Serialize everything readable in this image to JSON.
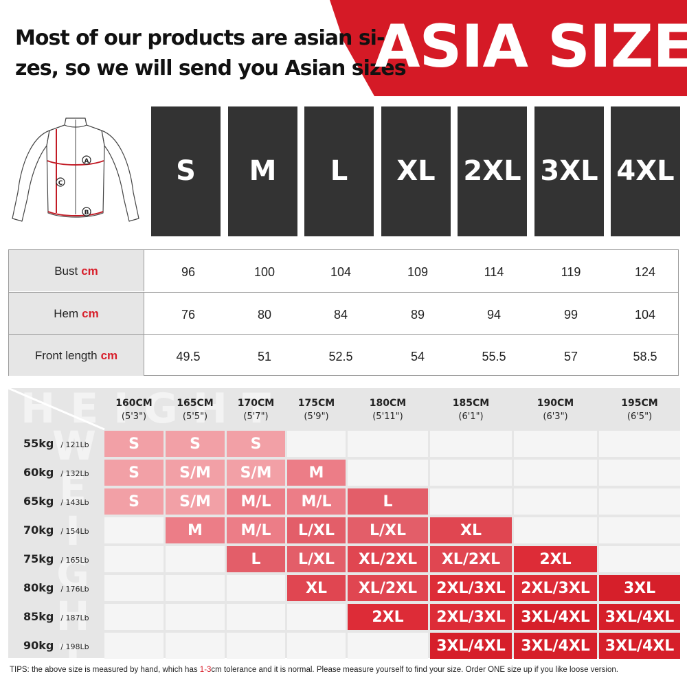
{
  "header": {
    "line1": "Most of our products are asian si-",
    "line2": "zes, so we will send you Asian sizes",
    "title": "ASIA SIZE"
  },
  "jacket": {
    "markers": [
      "A",
      "C",
      "B"
    ]
  },
  "sizes": [
    "S",
    "M",
    "L",
    "XL",
    "2XL",
    "3XL",
    "4XL"
  ],
  "measurements": {
    "unit": "cm",
    "rows": [
      {
        "label": "Bust",
        "values": [
          "96",
          "100",
          "104",
          "109",
          "114",
          "119",
          "124"
        ]
      },
      {
        "label": "Hem",
        "values": [
          "76",
          "80",
          "84",
          "89",
          "94",
          "99",
          "104"
        ]
      },
      {
        "label": "Front length",
        "values": [
          "49.5",
          "51",
          "52.5",
          "54",
          "55.5",
          "57",
          "58.5"
        ]
      }
    ]
  },
  "chart": {
    "watermark_height": "HEIGHT",
    "watermark_weight": "WEIGHT",
    "heights": [
      {
        "cm": "160CM",
        "ft": "(5'3\")"
      },
      {
        "cm": "165CM",
        "ft": "(5'5\")"
      },
      {
        "cm": "170CM",
        "ft": "(5'7\")"
      },
      {
        "cm": "175CM",
        "ft": "(5'9\")"
      },
      {
        "cm": "180CM",
        "ft": "(5'11\")"
      },
      {
        "cm": "185CM",
        "ft": "(6'1\")"
      },
      {
        "cm": "190CM",
        "ft": "(6'3\")"
      },
      {
        "cm": "195CM",
        "ft": "(6'5\")"
      }
    ],
    "weights": [
      {
        "kg": "55kg",
        "lb": "/ 121Lb"
      },
      {
        "kg": "60kg",
        "lb": "/ 132Lb"
      },
      {
        "kg": "65kg",
        "lb": "/ 143Lb"
      },
      {
        "kg": "70kg",
        "lb": "/ 154Lb"
      },
      {
        "kg": "75kg",
        "lb": "/ 165Lb"
      },
      {
        "kg": "80kg",
        "lb": "/ 176Lb"
      },
      {
        "kg": "85kg",
        "lb": "/ 187Lb"
      },
      {
        "kg": "90kg",
        "lb": "/ 198Lb"
      }
    ],
    "grid": [
      [
        "S",
        "S",
        "S",
        "",
        "",
        "",
        "",
        ""
      ],
      [
        "S",
        "S/M",
        "S/M",
        "M",
        "",
        "",
        "",
        ""
      ],
      [
        "S",
        "S/M",
        "M/L",
        "M/L",
        "L",
        "",
        "",
        ""
      ],
      [
        "",
        "M",
        "M/L",
        "L/XL",
        "L/XL",
        "XL",
        "",
        ""
      ],
      [
        "",
        "",
        "L",
        "L/XL",
        "XL/2XL",
        "XL/2XL",
        "2XL",
        ""
      ],
      [
        "",
        "",
        "",
        "XL",
        "XL/2XL",
        "2XL/3XL",
        "2XL/3XL",
        "3XL"
      ],
      [
        "",
        "",
        "",
        "",
        "2XL",
        "2XL/3XL",
        "3XL/4XL",
        "3XL/4XL"
      ],
      [
        "",
        "",
        "",
        "",
        "",
        "3XL/4XL",
        "3XL/4XL",
        "3XL/4XL"
      ]
    ],
    "colors": {
      "S": "#f2a0a6",
      "S/M": "#f2a0a6",
      "M": "#ec7d87",
      "M/L": "#ec7d87",
      "L": "#e35e69",
      "L/XL": "#e35e69",
      "XL": "#e04651",
      "XL/2XL": "#e04651",
      "2XL": "#dd2c37",
      "2XL/3XL": "#dd2c37",
      "3XL": "#d61f2a",
      "3XL/4XL": "#d61f2a",
      "empty": "#f5f5f5"
    }
  },
  "tips": {
    "before": "TIPS:  the above size is measured by hand, which has ",
    "highlight": "1-3",
    "after": "cm tolerance and it is normal. Please measure yourself to find your size. Order ONE size up if you like loose version."
  }
}
